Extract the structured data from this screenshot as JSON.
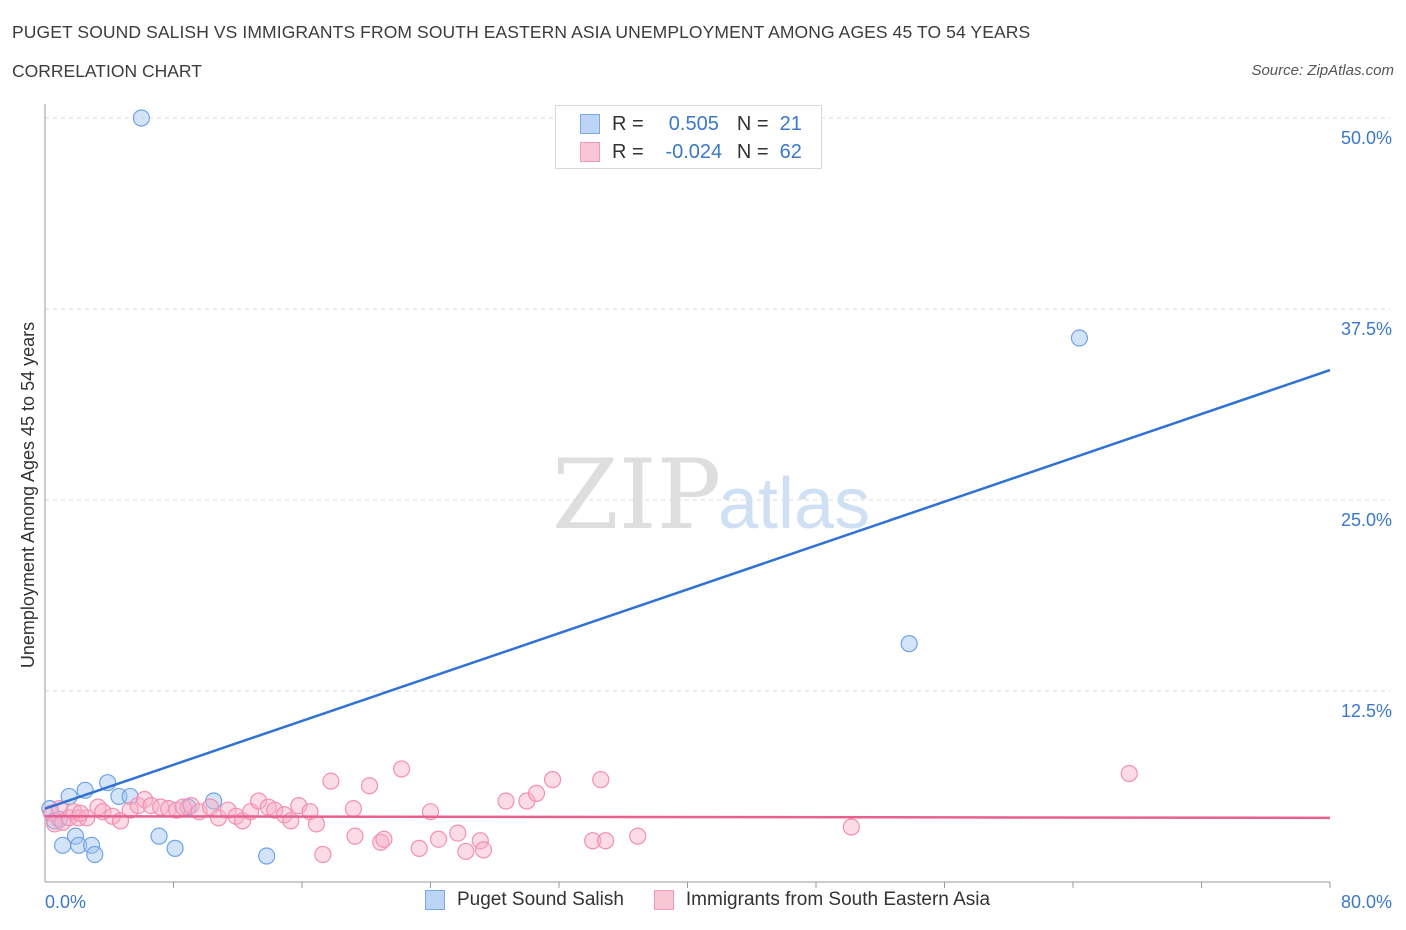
{
  "header": {
    "title": "PUGET SOUND SALISH VS IMMIGRANTS FROM SOUTH EASTERN ASIA UNEMPLOYMENT AMONG AGES 45 TO 54 YEARS",
    "subtitle": "CORRELATION CHART",
    "source": "Source: ZipAtlas.com"
  },
  "legend": {
    "r_label": "R =",
    "n_label": "N =",
    "series1": {
      "r": "0.505",
      "n": "21"
    },
    "series2": {
      "r": "-0.024",
      "n": "62"
    }
  },
  "chart_data": {
    "type": "scatter",
    "title": "PUGET SOUND SALISH VS IMMIGRANTS FROM SOUTH EASTERN ASIA UNEMPLOYMENT AMONG AGES 45 TO 54 YEARS",
    "xlabel": "",
    "ylabel": "Unemployment Among Ages 45 to 54 years",
    "xlim": [
      0,
      80
    ],
    "ylim": [
      0,
      50
    ],
    "x_tick_labels": [
      "0.0%",
      "80.0%"
    ],
    "y_ticks": [
      12.5,
      25.0,
      37.5,
      50.0
    ],
    "y_tick_labels": [
      "12.5%",
      "25.0%",
      "37.5%",
      "50.0%"
    ],
    "grid": true,
    "watermark": {
      "part1": "ZIP",
      "part2": "atlas"
    },
    "series": [
      {
        "name": "Puget Sound Salish",
        "color": "#6fa3e8",
        "line_color": "#2f72d3",
        "trend": {
          "x0": 0,
          "y0": 4.8,
          "x1": 80,
          "y1": 33.5
        },
        "points": [
          [
            0.3,
            4.8
          ],
          [
            0.6,
            4.0
          ],
          [
            0.9,
            4.1
          ],
          [
            1.1,
            2.4
          ],
          [
            1.5,
            5.6
          ],
          [
            1.9,
            3.0
          ],
          [
            2.1,
            2.4
          ],
          [
            2.5,
            6.0
          ],
          [
            2.9,
            2.4
          ],
          [
            3.1,
            1.8
          ],
          [
            3.9,
            6.5
          ],
          [
            4.6,
            5.6
          ],
          [
            5.3,
            5.6
          ],
          [
            6.0,
            50.0
          ],
          [
            7.1,
            3.0
          ],
          [
            8.1,
            2.2
          ],
          [
            8.9,
            4.9
          ],
          [
            10.5,
            5.3
          ],
          [
            13.8,
            1.7
          ],
          [
            64.4,
            35.6
          ],
          [
            53.8,
            15.6
          ]
        ]
      },
      {
        "name": "Immigrants from South Eastern Asia",
        "color": "#f48fb1",
        "line_color": "#e8608e",
        "trend": {
          "x0": 0,
          "y0": 4.3,
          "x1": 80,
          "y1": 4.2
        },
        "points": [
          [
            0.4,
            4.5
          ],
          [
            0.6,
            3.8
          ],
          [
            0.9,
            4.8
          ],
          [
            1.1,
            3.9
          ],
          [
            1.5,
            4.2
          ],
          [
            1.8,
            4.6
          ],
          [
            2.1,
            4.2
          ],
          [
            2.6,
            4.2
          ],
          [
            3.3,
            4.9
          ],
          [
            3.6,
            4.6
          ],
          [
            4.2,
            4.3
          ],
          [
            4.7,
            4.0
          ],
          [
            5.3,
            4.7
          ],
          [
            5.8,
            5.0
          ],
          [
            6.2,
            5.4
          ],
          [
            6.6,
            5.0
          ],
          [
            7.2,
            4.9
          ],
          [
            7.7,
            4.8
          ],
          [
            8.2,
            4.7
          ],
          [
            8.6,
            4.9
          ],
          [
            9.1,
            5.0
          ],
          [
            9.6,
            4.6
          ],
          [
            10.3,
            4.9
          ],
          [
            10.8,
            4.2
          ],
          [
            11.4,
            4.7
          ],
          [
            11.9,
            4.3
          ],
          [
            12.3,
            4.0
          ],
          [
            12.8,
            4.6
          ],
          [
            13.3,
            5.3
          ],
          [
            13.9,
            4.9
          ],
          [
            14.3,
            4.7
          ],
          [
            14.9,
            4.4
          ],
          [
            15.3,
            4.0
          ],
          [
            15.8,
            5.0
          ],
          [
            16.5,
            4.6
          ],
          [
            16.9,
            3.8
          ],
          [
            17.3,
            1.8
          ],
          [
            17.8,
            6.6
          ],
          [
            19.2,
            4.8
          ],
          [
            19.3,
            3.0
          ],
          [
            20.2,
            6.3
          ],
          [
            20.9,
            2.6
          ],
          [
            21.1,
            2.8
          ],
          [
            22.2,
            7.4
          ],
          [
            23.3,
            2.2
          ],
          [
            24.0,
            4.6
          ],
          [
            24.5,
            2.8
          ],
          [
            25.7,
            3.2
          ],
          [
            26.2,
            2.0
          ],
          [
            27.1,
            2.7
          ],
          [
            27.3,
            2.1
          ],
          [
            28.7,
            5.3
          ],
          [
            30.0,
            5.3
          ],
          [
            30.6,
            5.8
          ],
          [
            31.6,
            6.7
          ],
          [
            34.1,
            2.7
          ],
          [
            34.6,
            6.7
          ],
          [
            34.9,
            2.7
          ],
          [
            36.9,
            3.0
          ],
          [
            50.2,
            3.6
          ],
          [
            67.5,
            7.1
          ],
          [
            2.2,
            4.5
          ]
        ]
      }
    ]
  }
}
